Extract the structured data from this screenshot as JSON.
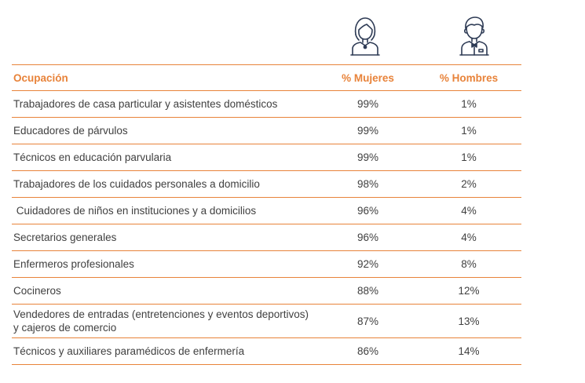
{
  "icons": {
    "women": "woman-avatar-icon",
    "men": "man-avatar-icon",
    "icon_color": "#2e3b55",
    "accent_color": "#e8833a"
  },
  "table": {
    "headers": {
      "occupation": "Ocupación",
      "women": "% Mujeres",
      "men": "% Hombres"
    },
    "rows": [
      {
        "occupation": "Trabajadores de casa particular y asistentes domésticos",
        "women": "99%",
        "men": "1%"
      },
      {
        "occupation": "Educadores de párvulos",
        "women": "99%",
        "men": "1%"
      },
      {
        "occupation": "Técnicos en educación parvularia",
        "women": "99%",
        "men": "1%"
      },
      {
        "occupation": "Trabajadores de los cuidados personales a domicilio",
        "women": "98%",
        "men": "2%"
      },
      {
        "occupation": " Cuidadores de niños en instituciones y a domicilios",
        "women": "96%",
        "men": "4%"
      },
      {
        "occupation": "Secretarios generales",
        "women": "96%",
        "men": "4%"
      },
      {
        "occupation": "Enfermeros profesionales",
        "women": "92%",
        "men": "8%"
      },
      {
        "occupation": "Cocineros",
        "women": "88%",
        "men": "12%"
      },
      {
        "occupation": "Vendedores de entradas (entretenciones y eventos deportivos) y cajeros de comercio",
        "women": "87%",
        "men": "13%"
      },
      {
        "occupation": "Técnicos y auxiliares paramédicos de enfermería",
        "women": "86%",
        "men": "14%"
      }
    ]
  }
}
